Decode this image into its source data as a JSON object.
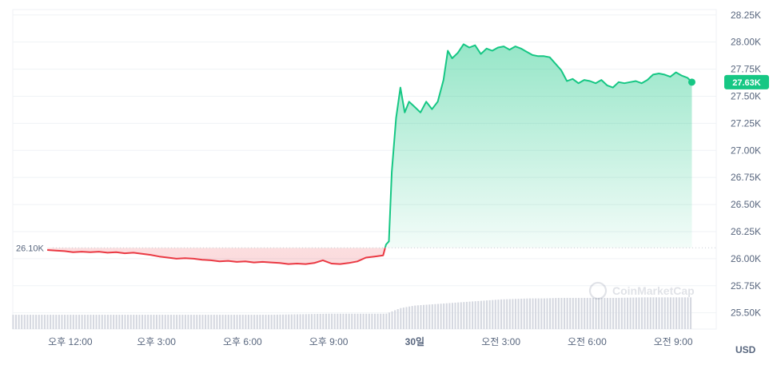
{
  "chart_data": {
    "type": "area",
    "currency": "USD",
    "baseline": {
      "label": "26.10K",
      "value": 26100
    },
    "current": {
      "label": "27.63K",
      "value": 27630
    },
    "ylim": [
      25350,
      28300
    ],
    "y_ticks": [
      {
        "value": 28250,
        "label": "28.25K"
      },
      {
        "value": 28000,
        "label": "28.00K"
      },
      {
        "value": 27750,
        "label": "27.75K"
      },
      {
        "value": 27500,
        "label": "27.50K"
      },
      {
        "value": 27250,
        "label": "27.25K"
      },
      {
        "value": 27000,
        "label": "27.00K"
      },
      {
        "value": 26750,
        "label": "26.75K"
      },
      {
        "value": 26500,
        "label": "26.50K"
      },
      {
        "value": 26250,
        "label": "26.25K"
      },
      {
        "value": 26000,
        "label": "26.00K"
      },
      {
        "value": 25750,
        "label": "25.75K"
      },
      {
        "value": 25500,
        "label": "25.50K"
      }
    ],
    "x_range_hours": [
      0,
      24.5
    ],
    "x_ticks": [
      {
        "hour": 2,
        "label": "오후 12:00"
      },
      {
        "hour": 5,
        "label": "오후 3:00"
      },
      {
        "hour": 8,
        "label": "오후 6:00"
      },
      {
        "hour": 11,
        "label": "오후 9:00"
      },
      {
        "hour": 14,
        "label": "30일"
      },
      {
        "hour": 17,
        "label": "오전 3:00"
      },
      {
        "hour": 20,
        "label": "오전 6:00"
      },
      {
        "hour": 23,
        "label": "오전 9:00"
      }
    ],
    "series": [
      {
        "points": [
          [
            1.2,
            26080
          ],
          [
            1.5,
            26075
          ],
          [
            1.8,
            26070
          ],
          [
            2.1,
            26060
          ],
          [
            2.4,
            26065
          ],
          [
            2.7,
            26060
          ],
          [
            3.0,
            26065
          ],
          [
            3.3,
            26055
          ],
          [
            3.6,
            26060
          ],
          [
            3.9,
            26050
          ],
          [
            4.2,
            26055
          ],
          [
            4.5,
            26045
          ],
          [
            4.8,
            26035
          ],
          [
            5.1,
            26020
          ],
          [
            5.4,
            26010
          ],
          [
            5.7,
            26000
          ],
          [
            6.0,
            26005
          ],
          [
            6.3,
            26000
          ],
          [
            6.6,
            25990
          ],
          [
            6.9,
            25985
          ],
          [
            7.2,
            25975
          ],
          [
            7.5,
            25980
          ],
          [
            7.8,
            25970
          ],
          [
            8.1,
            25975
          ],
          [
            8.4,
            25965
          ],
          [
            8.7,
            25970
          ],
          [
            9.0,
            25965
          ],
          [
            9.3,
            25960
          ],
          [
            9.6,
            25950
          ],
          [
            9.9,
            25955
          ],
          [
            10.2,
            25950
          ],
          [
            10.5,
            25960
          ],
          [
            10.8,
            25985
          ],
          [
            11.1,
            25955
          ],
          [
            11.4,
            25950
          ],
          [
            11.7,
            25960
          ],
          [
            12.0,
            25975
          ],
          [
            12.3,
            26010
          ],
          [
            12.6,
            26020
          ],
          [
            12.9,
            26030
          ],
          [
            13.0,
            26130
          ],
          [
            13.1,
            26160
          ],
          [
            13.2,
            26800
          ],
          [
            13.35,
            27300
          ],
          [
            13.5,
            27580
          ],
          [
            13.65,
            27350
          ],
          [
            13.8,
            27450
          ],
          [
            14.0,
            27400
          ],
          [
            14.2,
            27350
          ],
          [
            14.4,
            27450
          ],
          [
            14.6,
            27380
          ],
          [
            14.8,
            27450
          ],
          [
            15.0,
            27650
          ],
          [
            15.15,
            27920
          ],
          [
            15.3,
            27850
          ],
          [
            15.5,
            27900
          ],
          [
            15.7,
            27980
          ],
          [
            15.9,
            27950
          ],
          [
            16.1,
            27970
          ],
          [
            16.3,
            27890
          ],
          [
            16.5,
            27940
          ],
          [
            16.7,
            27920
          ],
          [
            16.9,
            27950
          ],
          [
            17.1,
            27960
          ],
          [
            17.3,
            27930
          ],
          [
            17.5,
            27960
          ],
          [
            17.7,
            27940
          ],
          [
            17.9,
            27910
          ],
          [
            18.1,
            27880
          ],
          [
            18.3,
            27870
          ],
          [
            18.5,
            27870
          ],
          [
            18.7,
            27860
          ],
          [
            18.9,
            27800
          ],
          [
            19.1,
            27740
          ],
          [
            19.3,
            27640
          ],
          [
            19.5,
            27660
          ],
          [
            19.7,
            27620
          ],
          [
            19.9,
            27650
          ],
          [
            20.1,
            27640
          ],
          [
            20.3,
            27620
          ],
          [
            20.5,
            27650
          ],
          [
            20.7,
            27600
          ],
          [
            20.9,
            27580
          ],
          [
            21.1,
            27630
          ],
          [
            21.3,
            27620
          ],
          [
            21.5,
            27630
          ],
          [
            21.7,
            27640
          ],
          [
            21.9,
            27620
          ],
          [
            22.1,
            27650
          ],
          [
            22.3,
            27700
          ],
          [
            22.5,
            27710
          ],
          [
            22.7,
            27700
          ],
          [
            22.9,
            27680
          ],
          [
            23.1,
            27720
          ],
          [
            23.3,
            27690
          ],
          [
            23.5,
            27670
          ],
          [
            23.65,
            27630
          ]
        ]
      }
    ],
    "volume": {
      "ylim": [
        0,
        100
      ],
      "values": [
        [
          1.2,
          28
        ],
        [
          2,
          28
        ],
        [
          3,
          28
        ],
        [
          4,
          28
        ],
        [
          5,
          28
        ],
        [
          6,
          28
        ],
        [
          7,
          28
        ],
        [
          8,
          28
        ],
        [
          9,
          28
        ],
        [
          10,
          29
        ],
        [
          11,
          30
        ],
        [
          12,
          30
        ],
        [
          13,
          30
        ],
        [
          13.5,
          41
        ],
        [
          14,
          46
        ],
        [
          14.5,
          48
        ],
        [
          15,
          50
        ],
        [
          15.5,
          52
        ],
        [
          16,
          54
        ],
        [
          16.5,
          56
        ],
        [
          17,
          58
        ],
        [
          17.5,
          59
        ],
        [
          18,
          60
        ],
        [
          18.5,
          60
        ],
        [
          19,
          61
        ],
        [
          20,
          61
        ],
        [
          21,
          61
        ],
        [
          22,
          62
        ],
        [
          23,
          62
        ],
        [
          23.65,
          62
        ]
      ]
    },
    "watermark": "CoinMarketCap",
    "colors": {
      "up_line": "#16c784",
      "down_line": "#ea3943",
      "volume_bar": "#d5d8e0",
      "grid": "#eff2f5",
      "axis_text": "#58667e"
    }
  }
}
